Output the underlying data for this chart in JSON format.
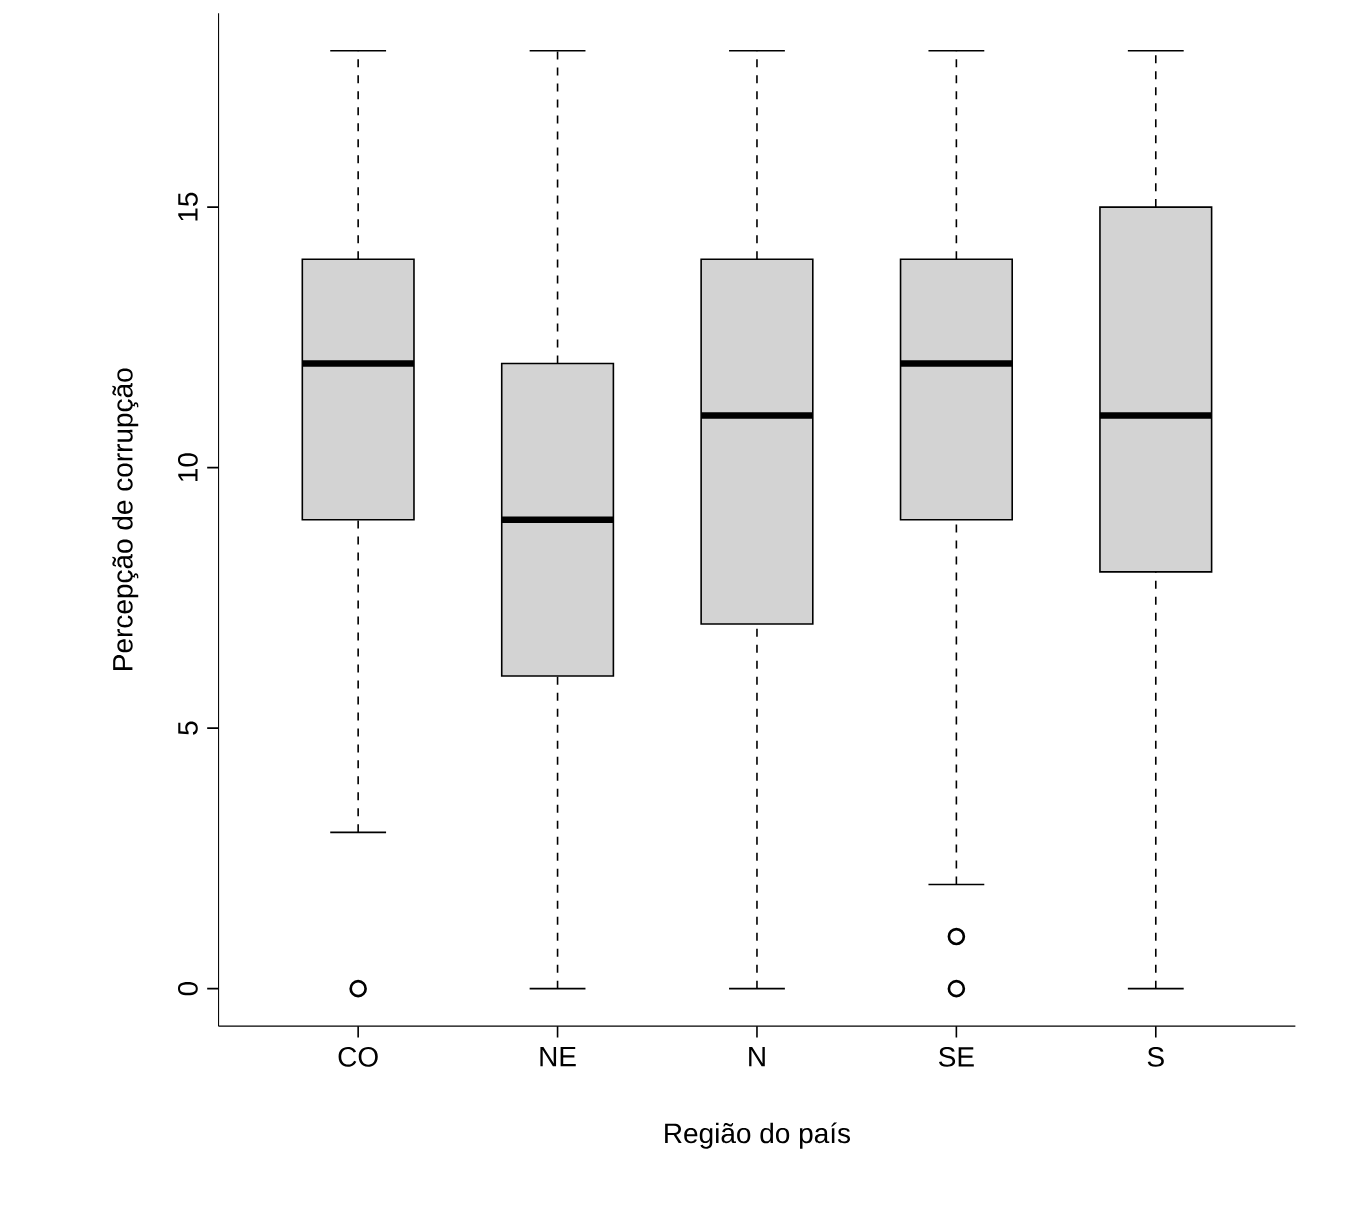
{
  "chart_data": {
    "type": "box",
    "xlabel": "Região do país",
    "ylabel": "Percepção de corrupção",
    "color": "#d3d3d3",
    "categories": [
      "CO",
      "NE",
      "N",
      "SE",
      "S"
    ],
    "boxes": [
      {
        "low": 3,
        "q1": 9,
        "median": 12,
        "q3": 14,
        "high": 18,
        "outliers": [
          0
        ]
      },
      {
        "low": 0,
        "q1": 6,
        "median": 9,
        "q3": 12,
        "high": 18
      },
      {
        "low": 0,
        "q1": 7,
        "median": 11,
        "q3": 14,
        "high": 18
      },
      {
        "low": 2,
        "q1": 9,
        "median": 12,
        "q3": 14,
        "high": 18,
        "outliers": [
          0,
          1
        ]
      },
      {
        "low": 0,
        "q1": 8,
        "median": 11,
        "q3": 15,
        "high": 18
      }
    ],
    "ylim": [
      -0.72,
      18.72
    ],
    "yticks": [
      0,
      5,
      10,
      15
    ]
  }
}
